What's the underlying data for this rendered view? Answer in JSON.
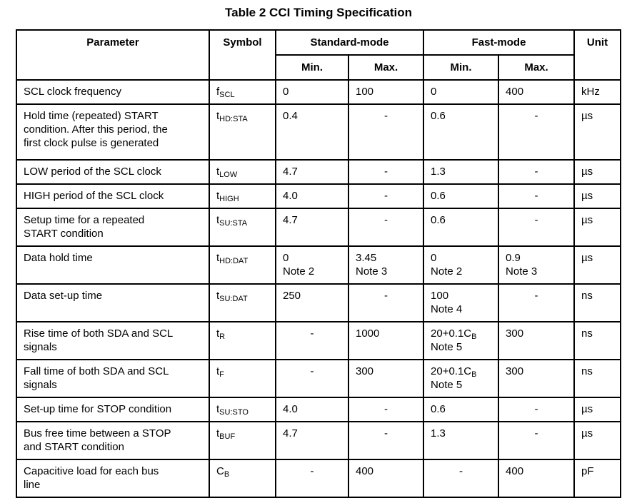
{
  "title": "Table 2 CCI Timing Specification",
  "colors": {
    "text": "#000000",
    "border": "#000000",
    "background": "#ffffff"
  },
  "table": {
    "header": {
      "parameter": "Parameter",
      "symbol": "Symbol",
      "standard_mode": "Standard-mode",
      "fast_mode": "Fast-mode",
      "unit": "Unit",
      "min": "Min.",
      "max": "Max."
    },
    "rows": [
      {
        "parameter": "SCL clock frequency",
        "symbol": "f_{SCL}",
        "std_min": "0",
        "std_max": "100",
        "fast_min": "0",
        "fast_max": "400",
        "unit": "kHz"
      },
      {
        "parameter": "Hold time (repeated) START\ncondition. After this period, the\nfirst clock pulse is generated",
        "symbol": "t_{HD:STA}",
        "std_min": "0.4",
        "std_max": "-",
        "fast_min": "0.6",
        "fast_max": "-",
        "unit": "µs"
      },
      {
        "parameter": "LOW period of the SCL clock",
        "symbol": "t_{LOW}",
        "std_min": "4.7",
        "std_max": "-",
        "fast_min": "1.3",
        "fast_max": "-",
        "unit": "µs"
      },
      {
        "parameter": "HIGH period of the SCL clock",
        "symbol": "t_{HIGH}",
        "std_min": "4.0",
        "std_max": "-",
        "fast_min": "0.6",
        "fast_max": "-",
        "unit": "µs"
      },
      {
        "parameter": "Setup time for a repeated\nSTART condition",
        "symbol": "t_{SU:STA}",
        "std_min": "4.7",
        "std_max": "-",
        "fast_min": "0.6",
        "fast_max": "-",
        "unit": "µs"
      },
      {
        "parameter": "Data hold time",
        "symbol": "t_{HD:DAT}",
        "std_min": "0\nNote 2",
        "std_max": "3.45\nNote 3",
        "fast_min": "0\nNote 2",
        "fast_max": "0.9\nNote 3",
        "unit": "µs"
      },
      {
        "parameter": "Data set-up time",
        "symbol": "t_{SU:DAT}",
        "std_min": "250",
        "std_max": "-",
        "fast_min": "100\nNote 4",
        "fast_max": "-",
        "unit": "ns"
      },
      {
        "parameter": "Rise time of both SDA and SCL\nsignals",
        "symbol": "t_{R}",
        "std_min": "-",
        "std_max": "1000",
        "fast_min": "20+0.1C_{B}\nNote 5",
        "fast_max": "300",
        "unit": "ns"
      },
      {
        "parameter": "Fall time of both SDA and SCL\nsignals",
        "symbol": "t_{F}",
        "std_min": "-",
        "std_max": "300",
        "fast_min": "20+0.1C_{B}\nNote 5",
        "fast_max": "300",
        "unit": "ns"
      },
      {
        "parameter": "Set-up time for STOP condition",
        "symbol": "t_{SU:STO}",
        "std_min": "4.0",
        "std_max": "-",
        "fast_min": "0.6",
        "fast_max": "-",
        "unit": "µs"
      },
      {
        "parameter": "Bus free time between a STOP\nand START condition",
        "symbol": "t_{BUF}",
        "std_min": "4.7",
        "std_max": "-",
        "fast_min": "1.3",
        "fast_max": "-",
        "unit": "µs"
      },
      {
        "parameter": "Capacitive load for each bus\nline",
        "symbol": "C_{B}",
        "std_min": "-",
        "std_max": "400",
        "fast_min": "-",
        "fast_max": "400",
        "unit": "pF"
      }
    ]
  }
}
